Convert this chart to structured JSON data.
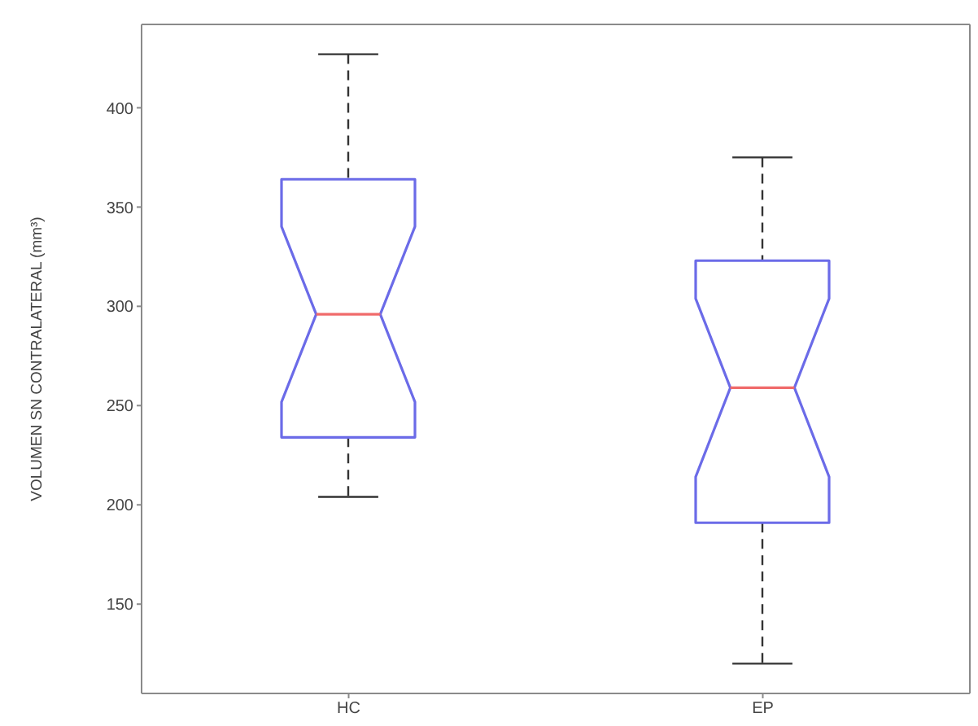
{
  "chart_data": {
    "type": "box",
    "ylabel": "VOLUMEN SN CONTRALATERAL (mm³)",
    "categories": [
      "HC",
      "EP"
    ],
    "series": [
      {
        "color": "#6b6be8",
        "boxes": [
          {
            "low": 204,
            "q1": 234,
            "median": 296,
            "q3": 364,
            "high": 427
          },
          {
            "low": 120,
            "q1": 191,
            "median": 259,
            "q3": 323,
            "high": 375
          }
        ]
      }
    ],
    "ylim": [
      105,
      442
    ],
    "yticks": [
      150,
      200,
      250,
      300,
      350,
      400
    ],
    "line_style": "dashed"
  }
}
